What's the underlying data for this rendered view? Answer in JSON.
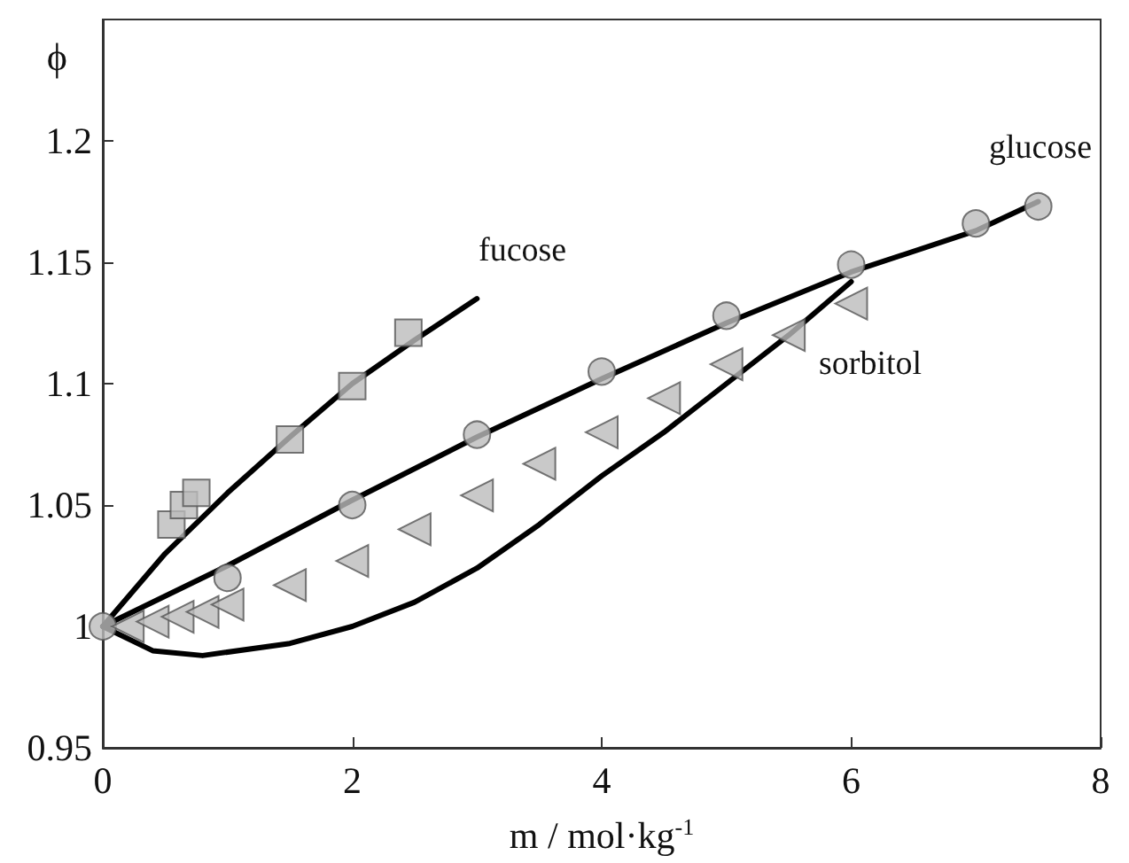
{
  "chart_data": {
    "type": "scatter",
    "xlabel": "m / mol·kg$^{-1}$",
    "ylabel": "ϕ",
    "xlim": [
      0,
      8
    ],
    "xticks": [
      0,
      2,
      4,
      6,
      8
    ],
    "ylim": [
      0.95,
      1.25
    ],
    "yticks": [
      0.95,
      1,
      1.05,
      1.1,
      1.15,
      1.2
    ],
    "grid": false,
    "series": [
      {
        "type": "line",
        "color": "#000000",
        "marker": "none",
        "line_style": "solid",
        "x": [
          0,
          0.5,
          1,
          1.5,
          2,
          2.5,
          3
        ],
        "values": [
          1,
          1.03,
          1.055,
          1.078,
          1.1,
          1.118,
          1.135
        ]
      },
      {
        "type": "line",
        "color": "#000000",
        "marker": "none",
        "line_style": "solid",
        "x": [
          0,
          1,
          2,
          3,
          4,
          5,
          6,
          7,
          7.5
        ],
        "values": [
          1,
          1.025,
          1.052,
          1.078,
          1.102,
          1.125,
          1.146,
          1.163,
          1.175
        ]
      },
      {
        "type": "line",
        "color": "#000000",
        "marker": "none",
        "line_style": "solid",
        "x": [
          0,
          0.4,
          0.8,
          1.5,
          2,
          2.5,
          3,
          3.5,
          4,
          4.5,
          5,
          5.5,
          6
        ],
        "values": [
          1,
          0.99,
          0.988,
          0.993,
          1,
          1.01,
          1.024,
          1.042,
          1.062,
          1.08,
          1.1,
          1.12,
          1.142
        ]
      },
      {
        "type": "scatter",
        "color": "#bbbbbb",
        "marker": "square",
        "x": [
          0.55,
          0.65,
          0.75,
          1.5,
          2,
          2.45
        ],
        "values": [
          1.042,
          1.05,
          1.055,
          1.077,
          1.099,
          1.121
        ]
      },
      {
        "type": "scatter",
        "color": "#bbbbbb",
        "marker": "circle",
        "x": [
          0,
          1,
          2,
          3,
          4,
          5,
          6,
          7,
          7.5
        ],
        "values": [
          1,
          1.02,
          1.05,
          1.079,
          1.105,
          1.128,
          1.149,
          1.166,
          1.173
        ]
      },
      {
        "type": "scatter",
        "color": "#bbbbbb",
        "marker": "triangle",
        "x": [
          0.2,
          0.4,
          0.6,
          0.8,
          1,
          1.5,
          2,
          2.5,
          3,
          3.5,
          4,
          4.5,
          5,
          5.5,
          6
        ],
        "values": [
          1,
          1.002,
          1.004,
          1.006,
          1.009,
          1.017,
          1.027,
          1.04,
          1.054,
          1.067,
          1.08,
          1.094,
          1.108,
          1.12,
          1.133
        ]
      }
    ],
    "annotations": [
      "fucose",
      "glucose",
      "sorbitol"
    ]
  }
}
